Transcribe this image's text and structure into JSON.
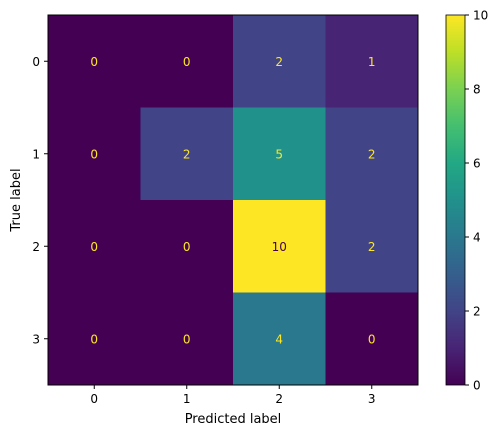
{
  "chart_data": {
    "type": "heatmap",
    "title": "",
    "xlabel": "Predicted label",
    "ylabel": "True label",
    "x_tick_labels": [
      "0",
      "1",
      "2",
      "3"
    ],
    "y_tick_labels": [
      "0",
      "1",
      "2",
      "3"
    ],
    "matrix": [
      [
        0,
        0,
        2,
        1
      ],
      [
        0,
        2,
        5,
        2
      ],
      [
        0,
        0,
        10,
        2
      ],
      [
        0,
        0,
        4,
        0
      ]
    ],
    "colormap": "viridis",
    "colorbar": {
      "range": [
        0,
        10
      ],
      "ticks": [
        "0",
        "2",
        "4",
        "6",
        "8",
        "10"
      ]
    }
  }
}
